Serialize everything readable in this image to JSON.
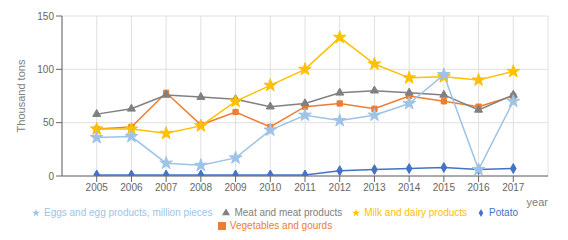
{
  "chart_data": {
    "type": "line",
    "xlabel": "year",
    "ylabel": "Thousand tons",
    "x": [
      2005,
      2006,
      2007,
      2008,
      2009,
      2010,
      2011,
      2012,
      2013,
      2014,
      2015,
      2016,
      2017
    ],
    "xlim": [
      2004,
      2018
    ],
    "xticks": [
      2005,
      2006,
      2007,
      2008,
      2009,
      2010,
      2011,
      2012,
      2013,
      2014,
      2015,
      2016,
      2017
    ],
    "ylim": [
      0,
      150
    ],
    "yticks": [
      0,
      50,
      100,
      150
    ],
    "grid": true,
    "legend": "bottom",
    "series": [
      {
        "name": "Potato",
        "color": "#4472c4",
        "marker": "diamond",
        "values": [
          1,
          1,
          1,
          1,
          1,
          1,
          1,
          5,
          6,
          7,
          8,
          6,
          7
        ]
      },
      {
        "name": "Vegetables and gourds",
        "color": "#ed7d31",
        "marker": "square",
        "values": [
          44,
          46,
          78,
          48,
          60,
          46,
          65,
          68,
          63,
          75,
          70,
          65,
          75
        ]
      },
      {
        "name": "Meat and meat products",
        "color": "#808080",
        "marker": "triangle",
        "values": [
          58,
          63,
          76,
          74,
          72,
          65,
          68,
          78,
          80,
          78,
          76,
          62,
          76
        ]
      },
      {
        "name": "Milk and dairy products",
        "color": "#ffc000",
        "marker": "star",
        "values": [
          44,
          44,
          40,
          47,
          70,
          85,
          100,
          130,
          105,
          92,
          93,
          90,
          98
        ]
      },
      {
        "name": "Eggs and egg products, million pieces",
        "color": "#9dc3e6",
        "marker": "star",
        "values": [
          36,
          37,
          12,
          10,
          17,
          43,
          57,
          52,
          57,
          68,
          95,
          6,
          70
        ]
      }
    ]
  }
}
